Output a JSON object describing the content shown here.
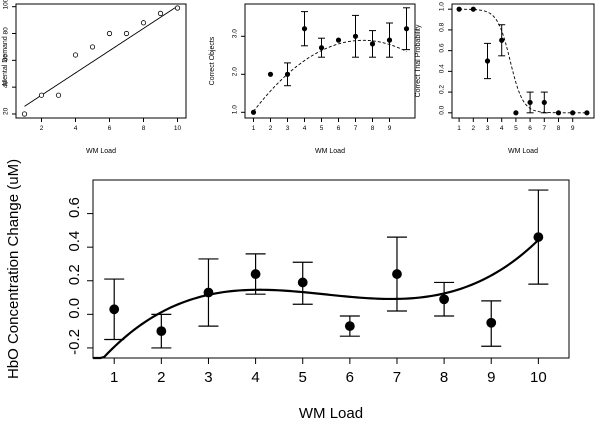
{
  "chart_data": [
    {
      "id": "mental-demand",
      "type": "scatter",
      "xlabel": "WM Load",
      "ylabel": "Mental Demand",
      "xlim": [
        0.5,
        10.5
      ],
      "ylim": [
        17,
        102
      ],
      "xticks": [
        2,
        4,
        6,
        8,
        10
      ],
      "yticks": [
        20,
        40,
        60,
        80,
        100
      ],
      "marker": "open",
      "points": [
        {
          "x": 1,
          "y": 20
        },
        {
          "x": 2,
          "y": 34
        },
        {
          "x": 3,
          "y": 34
        },
        {
          "x": 4,
          "y": 64
        },
        {
          "x": 5,
          "y": 70
        },
        {
          "x": 6,
          "y": 80
        },
        {
          "x": 7,
          "y": 80
        },
        {
          "x": 8,
          "y": 88
        },
        {
          "x": 9,
          "y": 95
        },
        {
          "x": 10,
          "y": 99
        }
      ],
      "fit": {
        "kind": "linear",
        "intercept": 17.4,
        "slope": 8.3
      }
    },
    {
      "id": "correct-objects",
      "type": "scatter",
      "xlabel": "WM Load",
      "ylabel": "Correct Objects",
      "xlim": [
        0.5,
        10.5
      ],
      "ylim": [
        0.85,
        3.85
      ],
      "xticks": [
        1,
        2,
        3,
        4,
        5,
        6,
        7,
        8,
        9
      ],
      "yticks": [
        1.0,
        2.0,
        3.0
      ],
      "ytick_labels": [
        "1.0",
        "2.0",
        "3.0"
      ],
      "marker": "filled",
      "points": [
        {
          "x": 1,
          "y": 1.0
        },
        {
          "x": 2,
          "y": 2.0
        },
        {
          "x": 3,
          "y": 2.0
        },
        {
          "x": 4,
          "y": 3.2
        },
        {
          "x": 5,
          "y": 2.7
        },
        {
          "x": 6,
          "y": 2.9
        },
        {
          "x": 7,
          "y": 3.0
        },
        {
          "x": 8,
          "y": 2.8
        },
        {
          "x": 9,
          "y": 2.9
        },
        {
          "x": 10,
          "y": 3.2
        }
      ],
      "errors": [
        {
          "x": 3,
          "lo": 1.7,
          "hi": 2.3
        },
        {
          "x": 4,
          "lo": 2.75,
          "hi": 3.65
        },
        {
          "x": 5,
          "lo": 2.45,
          "hi": 2.95
        },
        {
          "x": 7,
          "lo": 2.45,
          "hi": 3.55
        },
        {
          "x": 8,
          "lo": 2.45,
          "hi": 3.15
        },
        {
          "x": 9,
          "lo": 2.45,
          "hi": 3.35
        },
        {
          "x": 10,
          "lo": 2.65,
          "hi": 3.75
        }
      ],
      "fit": {
        "kind": "quadratic",
        "coefficients": [
          0.4,
          0.67,
          -0.045
        ],
        "style": "dashed"
      }
    },
    {
      "id": "correct-trial-probability",
      "type": "scatter",
      "xlabel": "WM Load",
      "ylabel": "Correct Trial Probability",
      "xlim": [
        0.5,
        10.5
      ],
      "ylim": [
        -0.05,
        1.05
      ],
      "xticks": [
        1,
        2,
        3,
        4,
        5,
        6,
        7,
        8,
        9
      ],
      "yticks": [
        0.0,
        0.2,
        0.4,
        0.6,
        0.8,
        1.0
      ],
      "ytick_labels": [
        "0.0",
        "0.2",
        "0.4",
        "0.6",
        "0.8",
        "1.0"
      ],
      "marker": "filled",
      "points": [
        {
          "x": 1,
          "y": 1.0
        },
        {
          "x": 2,
          "y": 1.0
        },
        {
          "x": 3,
          "y": 0.5
        },
        {
          "x": 4,
          "y": 0.7
        },
        {
          "x": 5,
          "y": 0.0
        },
        {
          "x": 6,
          "y": 0.1
        },
        {
          "x": 7,
          "y": 0.1
        },
        {
          "x": 8,
          "y": 0.0
        },
        {
          "x": 9,
          "y": 0.0
        },
        {
          "x": 10,
          "y": 0.0
        }
      ],
      "errors": [
        {
          "x": 3,
          "lo": 0.33,
          "hi": 0.67
        },
        {
          "x": 4,
          "lo": 0.55,
          "hi": 0.85
        },
        {
          "x": 6,
          "lo": 0.0,
          "hi": 0.2
        },
        {
          "x": 7,
          "lo": 0.0,
          "hi": 0.2
        }
      ],
      "fit": {
        "kind": "logistic",
        "midpoint": 4.6,
        "scale": 0.45,
        "style": "dashed"
      }
    },
    {
      "id": "hbo-concentration",
      "type": "scatter",
      "xlabel": "WM Load",
      "ylabel": "HbO Concentration Change  (uM)",
      "xlim": [
        0.55,
        10.65
      ],
      "ylim": [
        -0.26,
        0.8
      ],
      "xticks": [
        1,
        2,
        3,
        4,
        5,
        6,
        7,
        8,
        9,
        10
      ],
      "yticks": [
        -0.2,
        0.0,
        0.2,
        0.4,
        0.6
      ],
      "ytick_labels": [
        "-0.2",
        "0.0",
        "0.2",
        "0.4",
        "0.6"
      ],
      "marker": "filled",
      "points": [
        {
          "x": 1,
          "y": 0.03
        },
        {
          "x": 2,
          "y": -0.1
        },
        {
          "x": 3,
          "y": 0.13
        },
        {
          "x": 4,
          "y": 0.24
        },
        {
          "x": 5,
          "y": 0.19
        },
        {
          "x": 6,
          "y": -0.07
        },
        {
          "x": 7,
          "y": 0.24
        },
        {
          "x": 8,
          "y": 0.09
        },
        {
          "x": 9,
          "y": -0.05
        },
        {
          "x": 10,
          "y": 0.46
        }
      ],
      "errors": [
        {
          "x": 1,
          "lo": -0.15,
          "hi": 0.21
        },
        {
          "x": 2,
          "lo": -0.2,
          "hi": 0.0
        },
        {
          "x": 3,
          "lo": -0.07,
          "hi": 0.33
        },
        {
          "x": 4,
          "lo": 0.12,
          "hi": 0.36
        },
        {
          "x": 5,
          "lo": 0.06,
          "hi": 0.31
        },
        {
          "x": 6,
          "lo": -0.13,
          "hi": -0.01
        },
        {
          "x": 7,
          "lo": 0.02,
          "hi": 0.46
        },
        {
          "x": 8,
          "lo": -0.01,
          "hi": 0.19
        },
        {
          "x": 9,
          "lo": -0.19,
          "hi": 0.08
        },
        {
          "x": 10,
          "lo": 0.18,
          "hi": 0.74
        }
      ],
      "fit": {
        "kind": "cubic",
        "coefficients": [
          -0.533,
          0.4154,
          -0.08115,
          0.004937
        ],
        "style": "solid"
      }
    }
  ]
}
